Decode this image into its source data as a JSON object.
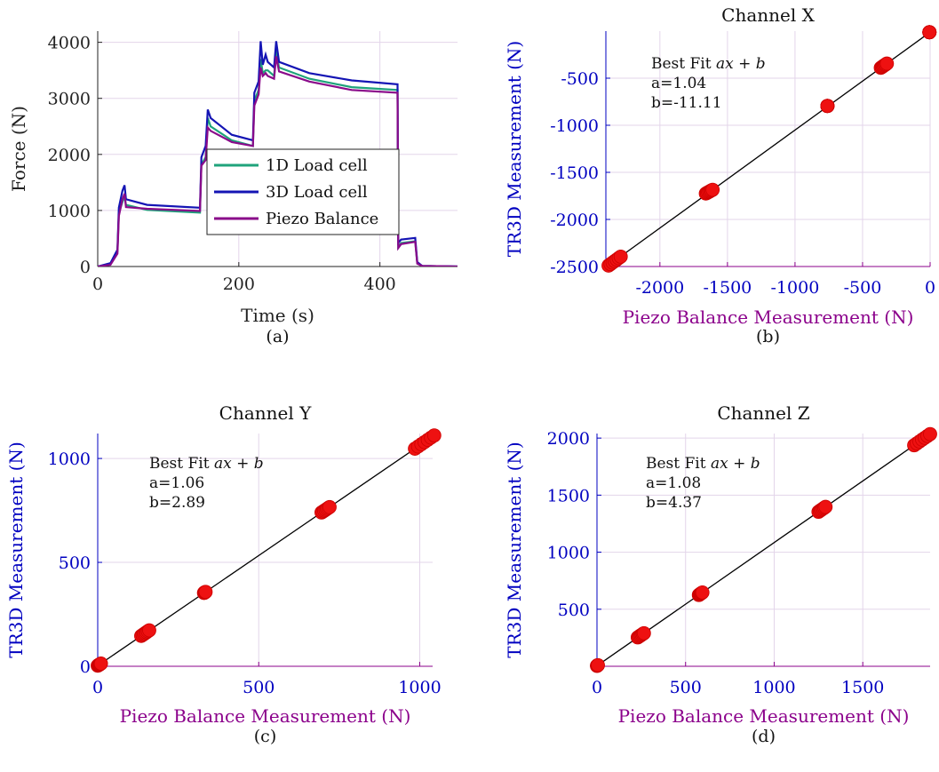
{
  "chart_data": [
    {
      "type": "line",
      "panel_label": "(a)",
      "title": "",
      "xlabel": "Time (s)",
      "ylabel": "Force (N)",
      "xlim": [
        0,
        510
      ],
      "ylim": [
        0,
        4200
      ],
      "xticks": [
        0,
        200,
        400
      ],
      "yticks": [
        0,
        1000,
        2000,
        3000,
        4000
      ],
      "grid": true,
      "legend": "center-right",
      "series": [
        {
          "name": "1D Load cell",
          "color": "#1fa37b",
          "points": [
            [
              0,
              0
            ],
            [
              18,
              40
            ],
            [
              28,
              260
            ],
            [
              30,
              950
            ],
            [
              35,
              1150
            ],
            [
              38,
              1250
            ],
            [
              40,
              1100
            ],
            [
              70,
              1010
            ],
            [
              145,
              960
            ],
            [
              147,
              1820
            ],
            [
              153,
              1950
            ],
            [
              156,
              2650
            ],
            [
              160,
              2500
            ],
            [
              190,
              2250
            ],
            [
              220,
              2150
            ],
            [
              222,
              2950
            ],
            [
              228,
              3150
            ],
            [
              231,
              3700
            ],
            [
              234,
              3450
            ],
            [
              238,
              3500
            ],
            [
              241,
              3500
            ],
            [
              250,
              3400
            ],
            [
              253,
              3850
            ],
            [
              257,
              3550
            ],
            [
              300,
              3350
            ],
            [
              360,
              3200
            ],
            [
              425,
              3150
            ],
            [
              426,
              350
            ],
            [
              430,
              420
            ],
            [
              450,
              450
            ],
            [
              453,
              60
            ],
            [
              460,
              10
            ],
            [
              510,
              0
            ]
          ]
        },
        {
          "name": "3D Load cell",
          "color": "#1414b4",
          "points": [
            [
              0,
              0
            ],
            [
              18,
              60
            ],
            [
              28,
              300
            ],
            [
              30,
              1050
            ],
            [
              35,
              1350
            ],
            [
              38,
              1450
            ],
            [
              40,
              1200
            ],
            [
              70,
              1100
            ],
            [
              145,
              1050
            ],
            [
              147,
              1950
            ],
            [
              153,
              2150
            ],
            [
              156,
              2800
            ],
            [
              160,
              2650
            ],
            [
              190,
              2350
            ],
            [
              220,
              2250
            ],
            [
              222,
              3100
            ],
            [
              228,
              3300
            ],
            [
              231,
              4020
            ],
            [
              234,
              3600
            ],
            [
              238,
              3780
            ],
            [
              241,
              3650
            ],
            [
              250,
              3550
            ],
            [
              253,
              4020
            ],
            [
              257,
              3650
            ],
            [
              300,
              3450
            ],
            [
              360,
              3320
            ],
            [
              425,
              3250
            ],
            [
              426,
              420
            ],
            [
              430,
              480
            ],
            [
              450,
              510
            ],
            [
              453,
              80
            ],
            [
              460,
              10
            ],
            [
              510,
              0
            ]
          ]
        },
        {
          "name": "Piezo Balance",
          "color": "#8a0a8a",
          "points": [
            [
              0,
              0
            ],
            [
              18,
              30
            ],
            [
              28,
              230
            ],
            [
              30,
              900
            ],
            [
              35,
              1200
            ],
            [
              38,
              1300
            ],
            [
              40,
              1060
            ],
            [
              70,
              1030
            ],
            [
              145,
              990
            ],
            [
              147,
              1800
            ],
            [
              153,
              1900
            ],
            [
              156,
              2480
            ],
            [
              160,
              2420
            ],
            [
              190,
              2220
            ],
            [
              220,
              2150
            ],
            [
              222,
              2870
            ],
            [
              228,
              3070
            ],
            [
              231,
              3550
            ],
            [
              234,
              3400
            ],
            [
              238,
              3450
            ],
            [
              241,
              3400
            ],
            [
              250,
              3350
            ],
            [
              253,
              3750
            ],
            [
              257,
              3480
            ],
            [
              300,
              3300
            ],
            [
              360,
              3150
            ],
            [
              425,
              3100
            ],
            [
              426,
              330
            ],
            [
              430,
              400
            ],
            [
              450,
              440
            ],
            [
              453,
              50
            ],
            [
              460,
              10
            ],
            [
              510,
              0
            ]
          ]
        }
      ]
    },
    {
      "type": "scatter",
      "panel_label": "(b)",
      "title": "Channel X",
      "xlabel": "Piezo Balance Measurement (N)",
      "ylabel": "TR3D Measurement (N)",
      "xlim": [
        -2400,
        0
      ],
      "ylim": [
        -2500,
        0
      ],
      "xticks": [
        -2000,
        -1500,
        -1000,
        -500,
        0
      ],
      "yticks": [
        -2500,
        -2000,
        -1500,
        -1000,
        -500
      ],
      "grid": true,
      "fit": {
        "a": 1.04,
        "b": -11.11
      },
      "annotation": [
        "Best Fit",
        "ax + b",
        "a=1.04",
        "b=-11.11"
      ],
      "clusters": [
        {
          "x": [
            -2380,
            -2290
          ],
          "y": [
            -2490,
            -2395
          ]
        },
        {
          "x": [
            -1660,
            -1610
          ],
          "y": [
            -1725,
            -1685
          ]
        },
        {
          "x": [
            -760,
            -760
          ],
          "y": [
            -795,
            -795
          ]
        },
        {
          "x": [
            -365,
            -320
          ],
          "y": [
            -390,
            -345
          ]
        },
        {
          "x": [
            -5,
            -5
          ],
          "y": [
            -12,
            -12
          ]
        }
      ]
    },
    {
      "type": "scatter",
      "panel_label": "(c)",
      "title": "Channel Y",
      "xlabel": "Piezo Balance Measurement (N)",
      "ylabel": "TR3D Measurement (N)",
      "xlim": [
        0,
        1040
      ],
      "ylim": [
        0,
        1120
      ],
      "xticks": [
        0,
        500,
        1000
      ],
      "yticks": [
        0,
        500,
        1000
      ],
      "grid": true,
      "fit": {
        "a": 1.06,
        "b": 2.89
      },
      "annotation": [
        "Best Fit",
        "ax + b",
        "a=1.06",
        "b=2.89"
      ],
      "clusters": [
        {
          "x": [
            0,
            10
          ],
          "y": [
            3,
            13
          ]
        },
        {
          "x": [
            135,
            160
          ],
          "y": [
            146,
            173
          ]
        },
        {
          "x": [
            330,
            335
          ],
          "y": [
            353,
            358
          ]
        },
        {
          "x": [
            695,
            720
          ],
          "y": [
            740,
            766
          ]
        },
        {
          "x": [
            985,
            1045
          ],
          "y": [
            1047,
            1111
          ]
        }
      ]
    },
    {
      "type": "scatter",
      "panel_label": "(d)",
      "title": "Channel Z",
      "xlabel": "Piezo Balance Measurement (N)",
      "ylabel": "TR3D Measurement (N)",
      "xlim": [
        0,
        1880
      ],
      "ylim": [
        0,
        2040
      ],
      "xticks": [
        0,
        500,
        1000,
        1500
      ],
      "yticks": [
        500,
        1000,
        1500,
        2000
      ],
      "grid": true,
      "fit": {
        "a": 1.08,
        "b": 4.37
      },
      "annotation": [
        "Best Fit",
        "ax + b",
        "a=1.08",
        "b=4.37"
      ],
      "clusters": [
        {
          "x": [
            0,
            5
          ],
          "y": [
            4,
            10
          ]
        },
        {
          "x": [
            230,
            265
          ],
          "y": [
            253,
            290
          ]
        },
        {
          "x": [
            575,
            595
          ],
          "y": [
            625,
            647
          ]
        },
        {
          "x": [
            1250,
            1290
          ],
          "y": [
            1354,
            1397
          ]
        },
        {
          "x": [
            1790,
            1880
          ],
          "y": [
            1937,
            2035
          ]
        }
      ]
    }
  ],
  "colors": {
    "tr3d_axis": "#0000c0",
    "piezo_axis": "#8b008b",
    "marker": "#ee1111",
    "fit_line": "#000000",
    "grid": "#e3d5ea"
  }
}
